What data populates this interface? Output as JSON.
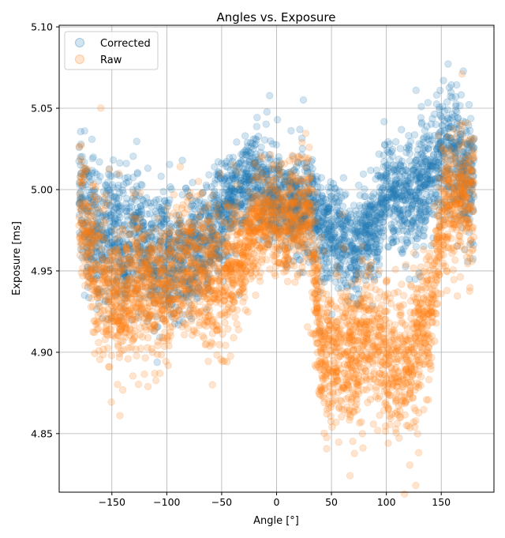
{
  "chart_data": {
    "type": "scatter",
    "title": "Angles vs. Exposure",
    "xlabel": "Angle [°]",
    "ylabel": "Exposure [ms]",
    "xlim": [
      -198,
      198
    ],
    "ylim": [
      4.814,
      5.101
    ],
    "xticks": [
      -150,
      -100,
      -50,
      0,
      50,
      100,
      150
    ],
    "xtick_labels": [
      "−150",
      "−100",
      "−50",
      "0",
      "50",
      "100",
      "150"
    ],
    "yticks": [
      4.85,
      4.9,
      4.95,
      5.0,
      5.05,
      5.1
    ],
    "ytick_labels": [
      "4.85",
      "4.90",
      "4.95",
      "5.00",
      "5.05",
      "5.10"
    ],
    "grid": true,
    "legend_position": "top-left",
    "marker_alpha": 0.2,
    "angle_range": [
      -180,
      180
    ],
    "series": [
      {
        "name": "Corrected",
        "color": "#1f77b4",
        "profile": {
          "x": [
            -180,
            -170,
            -160,
            -150,
            -140,
            -130,
            -120,
            -110,
            -100,
            -90,
            -80,
            -70,
            -60,
            -50,
            -40,
            -30,
            -20,
            -10,
            0,
            10,
            20,
            30,
            40,
            50,
            60,
            70,
            80,
            90,
            100,
            110,
            120,
            130,
            140,
            150,
            160,
            170,
            180
          ],
          "center": [
            4.99,
            4.98,
            4.97,
            4.975,
            4.965,
            4.975,
            4.965,
            4.96,
            4.965,
            4.955,
            4.96,
            4.965,
            4.975,
            4.98,
            4.995,
            5.005,
            5.005,
            5.0,
            4.995,
            4.99,
            4.99,
            4.99,
            4.975,
            4.975,
            4.97,
            4.96,
            4.975,
            4.975,
            5.0,
            4.99,
            4.995,
            5.0,
            5.01,
            5.02,
            5.025,
            5.01,
            5.0
          ],
          "spread": [
            0.04,
            0.05,
            0.045,
            0.045,
            0.04,
            0.042,
            0.04,
            0.04,
            0.04,
            0.035,
            0.035,
            0.035,
            0.035,
            0.03,
            0.03,
            0.03,
            0.03,
            0.03,
            0.03,
            0.03,
            0.03,
            0.03,
            0.035,
            0.03,
            0.03,
            0.03,
            0.03,
            0.03,
            0.035,
            0.035,
            0.035,
            0.04,
            0.04,
            0.04,
            0.04,
            0.04,
            0.04
          ]
        }
      },
      {
        "name": "Raw",
        "color": "#ff7f0e",
        "profile": {
          "x": [
            -180,
            -170,
            -160,
            -150,
            -140,
            -130,
            -120,
            -110,
            -100,
            -90,
            -80,
            -70,
            -60,
            -50,
            -40,
            -30,
            -20,
            -10,
            0,
            10,
            20,
            30,
            40,
            50,
            60,
            70,
            80,
            90,
            100,
            110,
            120,
            130,
            140,
            150,
            160,
            170,
            180
          ],
          "center": [
            4.99,
            4.97,
            4.95,
            4.935,
            4.935,
            4.945,
            4.94,
            4.935,
            4.94,
            4.95,
            4.955,
            4.95,
            4.945,
            4.945,
            4.95,
            4.96,
            4.975,
            4.985,
            4.98,
            4.975,
            4.985,
            4.985,
            4.9,
            4.895,
            4.9,
            4.895,
            4.91,
            4.905,
            4.9,
            4.895,
            4.895,
            4.91,
            4.92,
            4.985,
            4.995,
            5.0,
            4.995
          ],
          "spread": [
            0.04,
            0.045,
            0.05,
            0.045,
            0.04,
            0.045,
            0.04,
            0.045,
            0.04,
            0.04,
            0.04,
            0.04,
            0.04,
            0.045,
            0.04,
            0.035,
            0.035,
            0.03,
            0.03,
            0.035,
            0.03,
            0.03,
            0.045,
            0.045,
            0.045,
            0.045,
            0.04,
            0.045,
            0.045,
            0.045,
            0.045,
            0.045,
            0.045,
            0.04,
            0.04,
            0.04,
            0.04
          ]
        }
      }
    ]
  }
}
